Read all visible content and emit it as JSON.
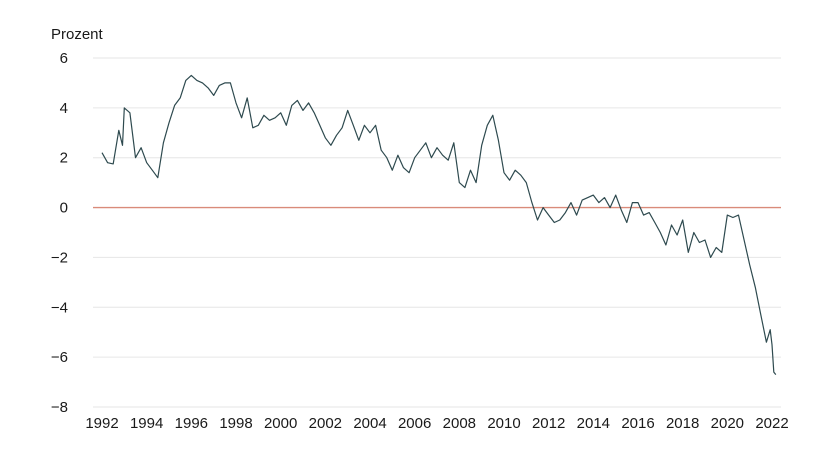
{
  "chart_data": {
    "type": "line",
    "ylabel": "Prozent",
    "xlim": [
      1991.5,
      2022.4
    ],
    "ylim": [
      -8,
      6
    ],
    "x_ticks": [
      1992,
      1994,
      1996,
      1998,
      2000,
      2002,
      2004,
      2006,
      2008,
      2010,
      2012,
      2014,
      2016,
      2018,
      2020,
      2022
    ],
    "x_tick_labels": [
      "1992",
      "1994",
      "1996",
      "1998",
      "2000",
      "2002",
      "2004",
      "2006",
      "2008",
      "2010",
      "2012",
      "2014",
      "2016",
      "2018",
      "2020",
      "2022"
    ],
    "y_ticks": [
      6,
      4,
      2,
      0,
      -2,
      -4,
      -6,
      -8
    ],
    "y_tick_labels": [
      "6",
      "4",
      "2",
      "0",
      "−2",
      "−4",
      "−6",
      "−8"
    ],
    "grid": true,
    "reference_line": 0,
    "colors": {
      "line": "#2e4a4f",
      "zero_line": "#d98b7a",
      "grid": "#e6e6e6"
    },
    "series": [
      {
        "x": [
          1992.0,
          1992.25,
          1992.5,
          1992.75,
          1992.92,
          1993.0,
          1993.25,
          1993.5,
          1993.75,
          1994.0,
          1994.25,
          1994.5,
          1994.75,
          1995.0,
          1995.25,
          1995.5,
          1995.75,
          1996.0,
          1996.25,
          1996.5,
          1996.75,
          1997.0,
          1997.25,
          1997.5,
          1997.75,
          1998.0,
          1998.25,
          1998.5,
          1998.75,
          1999.0,
          1999.25,
          1999.5,
          1999.75,
          2000.0,
          2000.25,
          2000.5,
          2000.75,
          2001.0,
          2001.25,
          2001.5,
          2001.75,
          2002.0,
          2002.25,
          2002.5,
          2002.75,
          2003.0,
          2003.25,
          2003.5,
          2003.75,
          2004.0,
          2004.25,
          2004.5,
          2004.75,
          2005.0,
          2005.25,
          2005.5,
          2005.75,
          2006.0,
          2006.25,
          2006.5,
          2006.75,
          2007.0,
          2007.25,
          2007.5,
          2007.75,
          2008.0,
          2008.25,
          2008.5,
          2008.75,
          2009.0,
          2009.25,
          2009.5,
          2009.75,
          2010.0,
          2010.25,
          2010.5,
          2010.75,
          2011.0,
          2011.25,
          2011.5,
          2011.75,
          2012.0,
          2012.25,
          2012.5,
          2012.75,
          2013.0,
          2013.25,
          2013.5,
          2013.75,
          2014.0,
          2014.25,
          2014.5,
          2014.75,
          2015.0,
          2015.25,
          2015.5,
          2015.75,
          2016.0,
          2016.25,
          2016.5,
          2016.75,
          2017.0,
          2017.25,
          2017.5,
          2017.75,
          2018.0,
          2018.25,
          2018.5,
          2018.75,
          2019.0,
          2019.25,
          2019.5,
          2019.75,
          2020.0,
          2020.25,
          2020.5,
          2020.75,
          2021.0,
          2021.25,
          2021.5,
          2021.75,
          2021.92,
          2022.0,
          2022.08,
          2022.17
        ],
        "y": [
          2.2,
          1.8,
          1.75,
          3.1,
          2.5,
          4.0,
          3.8,
          2.0,
          2.4,
          1.8,
          1.5,
          1.2,
          2.6,
          3.4,
          4.1,
          4.4,
          5.1,
          5.3,
          5.1,
          5.0,
          4.8,
          4.5,
          4.9,
          5.0,
          5.0,
          4.2,
          3.6,
          4.4,
          3.2,
          3.3,
          3.7,
          3.5,
          3.6,
          3.8,
          3.3,
          4.1,
          4.3,
          3.9,
          4.2,
          3.8,
          3.3,
          2.8,
          2.5,
          2.9,
          3.2,
          3.9,
          3.3,
          2.7,
          3.3,
          3.0,
          3.3,
          2.3,
          2.0,
          1.5,
          2.1,
          1.6,
          1.4,
          2.0,
          2.3,
          2.6,
          2.0,
          2.4,
          2.1,
          1.9,
          2.6,
          1.0,
          0.8,
          1.5,
          1.0,
          2.5,
          3.3,
          3.7,
          2.7,
          1.4,
          1.1,
          1.5,
          1.3,
          1.0,
          0.2,
          -0.5,
          0.0,
          -0.3,
          -0.6,
          -0.5,
          -0.2,
          0.2,
          -0.3,
          0.3,
          0.4,
          0.5,
          0.2,
          0.4,
          0.0,
          0.5,
          -0.1,
          -0.6,
          0.2,
          0.2,
          -0.3,
          -0.2,
          -0.6,
          -1.0,
          -1.5,
          -0.7,
          -1.1,
          -0.5,
          -1.8,
          -1.0,
          -1.4,
          -1.3,
          -2.0,
          -1.6,
          -1.8,
          -0.3,
          -0.4,
          -0.3,
          -1.3,
          -2.3,
          -3.2,
          -4.3,
          -5.4,
          -4.9,
          -5.5,
          -6.6,
          -6.7
        ]
      }
    ]
  }
}
